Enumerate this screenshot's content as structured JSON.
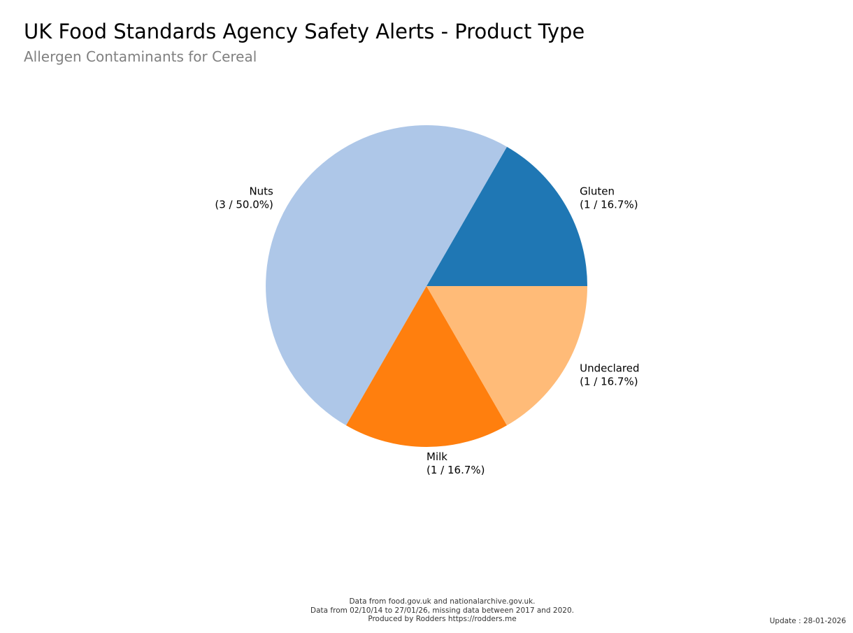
{
  "header": {
    "title": "UK Food Standards Agency Safety Alerts - Product Type",
    "subtitle": "Allergen Contaminants for Cereal"
  },
  "chart_data": {
    "type": "pie",
    "title": "UK Food Standards Agency Safety Alerts - Product Type",
    "subtitle": "Allergen Contaminants for Cereal",
    "start_angle_deg": 0,
    "direction": "counterclockwise",
    "slices": [
      {
        "name": "Gluten",
        "value": 1,
        "percent": "16.7%",
        "label_line2": "(1 / 16.7%)",
        "color": "#1f77b4"
      },
      {
        "name": "Nuts",
        "value": 3,
        "percent": "50.0%",
        "label_line2": "(3 / 50.0%)",
        "color": "#aec7e8"
      },
      {
        "name": "Milk",
        "value": 1,
        "percent": "16.7%",
        "label_line2": "(1 / 16.7%)",
        "color": "#ff7f0e"
      },
      {
        "name": "Undeclared",
        "value": 1,
        "percent": "16.7%",
        "label_line2": "(1 / 16.7%)",
        "color": "#ffbb78"
      }
    ]
  },
  "footer": {
    "line1": "Data from food.gov.uk and nationalarchive.gov.uk.",
    "line2": "Data from 02/10/14 to 27/01/26, missing data between 2017 and 2020.",
    "line3": "Produced by Rodders https://rodders.me",
    "update": "Update : 28-01-2026"
  }
}
